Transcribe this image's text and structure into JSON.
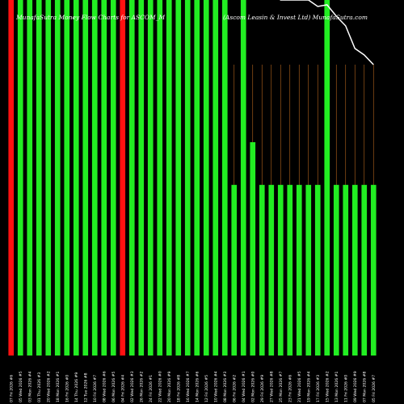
{
  "colors": {
    "background": "#000000",
    "up_bar": "#22ee22",
    "down_bar": "#ff1111",
    "grid_line": "#b5651d",
    "price_line": "#ffffff"
  },
  "chart_data": {
    "type": "bar",
    "title_left": "MunafaSutra Money Flow Charts for ASCOM_M",
    "title_right": "(Ascom Leasin & Invest Ltd) MunafaSutra.com",
    "ylim": [
      0,
      100
    ],
    "categories": [
      "07 Fri 2026 #6",
      "05 Wed 2026 #5",
      "03 Mon 2026 #4",
      "01 Thu 2026 #3",
      "20 Wed 2026 #2",
      "18 Mon 2026 #1",
      "16 Fri 2026 #0",
      "14 Thu 2026 #9",
      "12 Tue 2026 #8",
      "10 Fri 2026 #7",
      "08 Wed 2026 #6",
      "06 Mon 2026 #5",
      "04 Fri 2026 #4",
      "02 Wed 2026 #3",
      "26 Mon 2026 #2",
      "24 Fri 2026 #1",
      "22 Wed 2026 #0",
      "20 Mon 2026 #9",
      "18 Fri 2026 #8",
      "16 Wed 2026 #7",
      "14 Mon 2026 #6",
      "12 Fri 2026 #5",
      "10 Wed 2026 #4",
      "08 Mon 2026 #3",
      "06 Fri 2026 #2",
      "04 Wed 2026 #1",
      "02 Mon 2026 #0",
      "29 Fri 2026 #9",
      "27 Wed 2026 #8",
      "25 Mon 2026 #7",
      "23 Fri 2026 #6",
      "21 Wed 2026 #5",
      "19 Mon 2026 #4",
      "17 Fri 2026 #3",
      "15 Wed 2026 #2",
      "13 Mon 2026 #1",
      "11 Fri 2026 #0",
      "09 Wed 2026 #9",
      "07 Mon 2026 #8",
      "05 Fri 2026 #7"
    ],
    "series": [
      {
        "values": [
          100,
          100,
          100,
          100,
          100,
          100,
          100,
          100,
          100,
          100,
          100,
          100,
          100,
          100,
          100,
          100,
          100,
          100,
          100,
          100,
          100,
          100,
          100,
          100,
          48,
          100,
          60,
          48,
          48,
          48,
          48,
          48,
          48,
          48,
          100,
          48,
          48,
          48,
          48,
          48
        ],
        "direction": [
          "down",
          "up",
          "up",
          "up",
          "up",
          "up",
          "up",
          "up",
          "up",
          "up",
          "up",
          "up",
          "down",
          "up",
          "up",
          "up",
          "up",
          "up",
          "up",
          "up",
          "up",
          "up",
          "up",
          "up",
          "up",
          "up",
          "up",
          "up",
          "up",
          "up",
          "up",
          "up",
          "up",
          "up",
          "up",
          "up",
          "up",
          "up",
          "up",
          "up"
        ]
      }
    ],
    "price_line": [
      null,
      null,
      null,
      null,
      null,
      null,
      null,
      null,
      null,
      null,
      null,
      null,
      null,
      null,
      null,
      null,
      null,
      null,
      null,
      null,
      null,
      null,
      null,
      null,
      null,
      null,
      null,
      null,
      null,
      100,
      100,
      100,
      100,
      96,
      97,
      90,
      84,
      70,
      66,
      60
    ]
  }
}
